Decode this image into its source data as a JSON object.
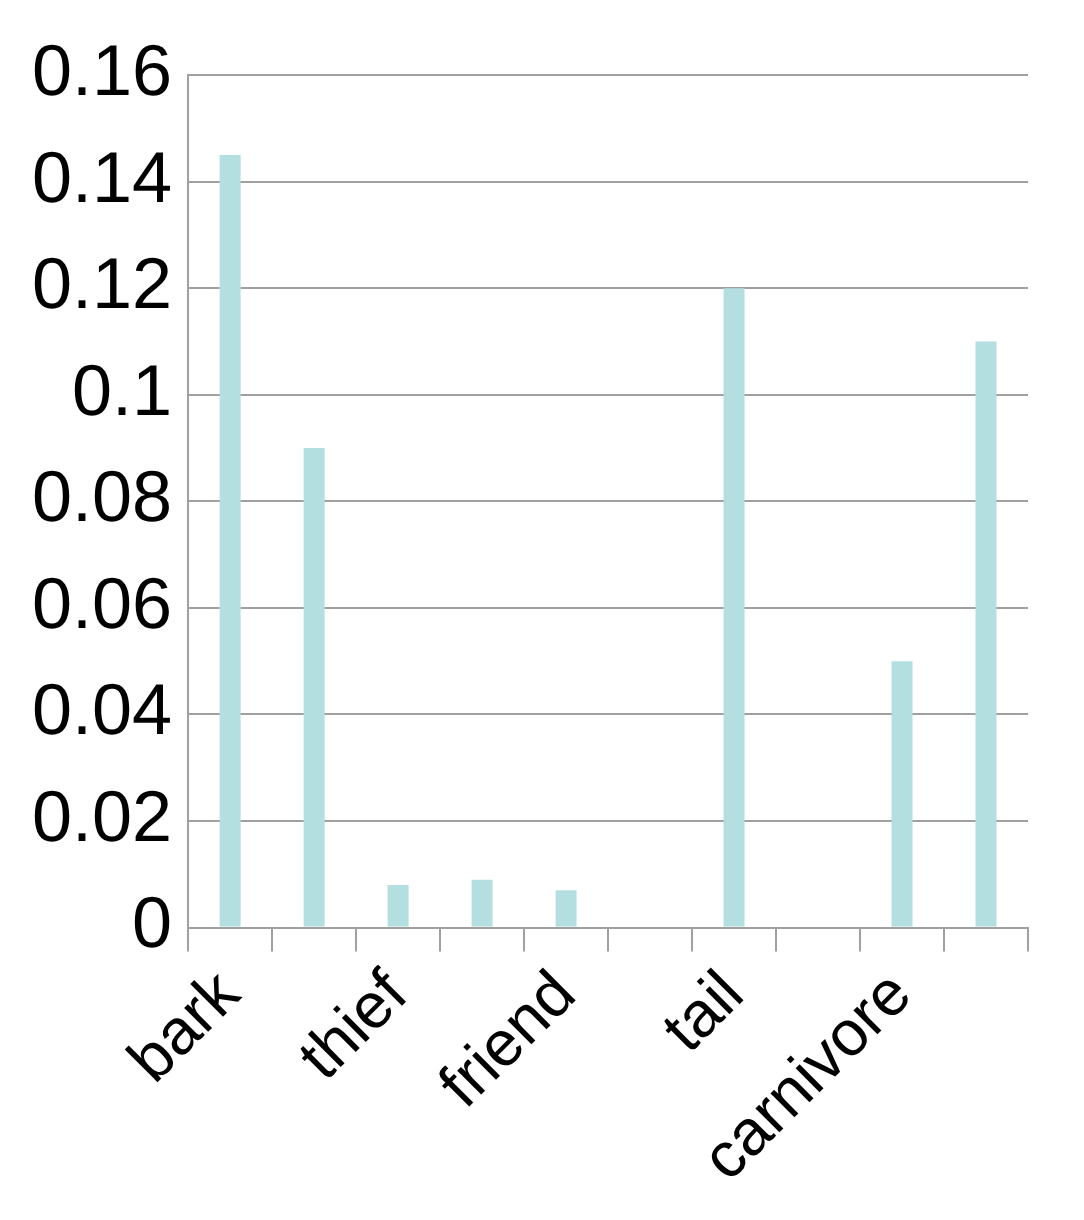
{
  "chart_data": {
    "type": "bar",
    "categories": [
      "bark",
      null,
      "thief",
      null,
      "friend",
      null,
      "tail",
      null,
      "carnivore",
      null
    ],
    "values": [
      0.145,
      0.09,
      0.008,
      0.009,
      0.007,
      0,
      0.12,
      0,
      0.05,
      0.11
    ],
    "color": "#b4dfe0",
    "ylim": [
      0,
      0.16
    ],
    "yticks": [
      0,
      0.02,
      0.04,
      0.06,
      0.08,
      0.1,
      0.12,
      0.14,
      0.16
    ],
    "grid": "y",
    "legend": false
  }
}
